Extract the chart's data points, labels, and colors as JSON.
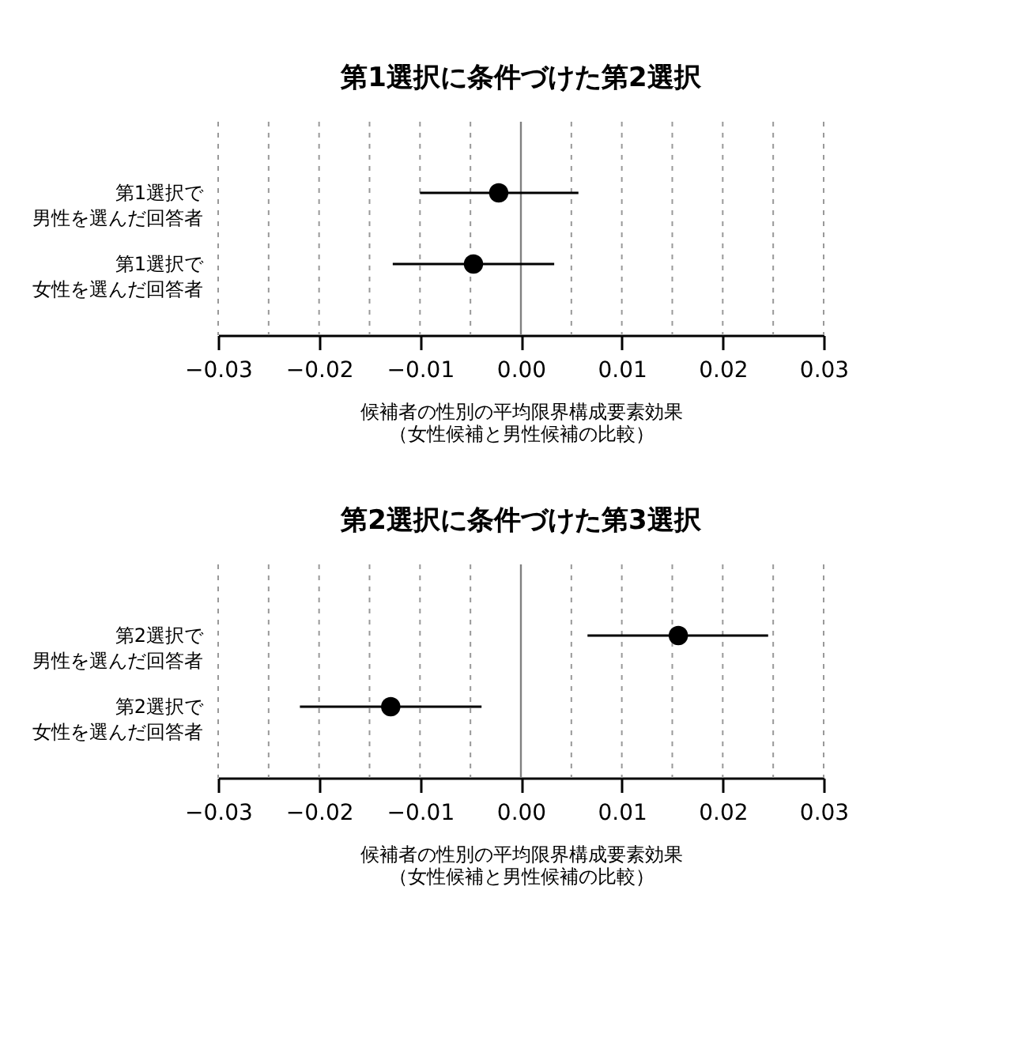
{
  "chart_data": [
    {
      "type": "scatter",
      "title": "第1選択に条件づけた第2選択",
      "xlabel": "候補者の性別の平均限界構成要素効果（女性候補と男性候補の比較）",
      "orientation": "horizontal",
      "categories": [
        "第1選択で男性を選んだ回答者",
        "第1選択で女性を選んだ回答者"
      ],
      "series": [
        {
          "color": "#000000",
          "values": [
            -0.0022,
            -0.0047
          ],
          "errors": [
            [
              -0.01,
              0.0057
            ],
            [
              -0.0127,
              0.0033
            ]
          ]
        }
      ],
      "xlim": [
        -0.03,
        0.03
      ],
      "xticks": [
        {
          "value": -0.03,
          "label": "−0.03"
        },
        {
          "value": -0.025,
          "label": null
        },
        {
          "value": -0.02,
          "label": "−0.02"
        },
        {
          "value": -0.015,
          "label": null
        },
        {
          "value": -0.01,
          "label": "−0.01"
        },
        {
          "value": -0.005,
          "label": null
        },
        {
          "value": 0,
          "label": "0.00"
        },
        {
          "value": 0.005,
          "label": null
        },
        {
          "value": 0.01,
          "label": "0.01"
        },
        {
          "value": 0.015,
          "label": null
        },
        {
          "value": 0.02,
          "label": "0.02"
        },
        {
          "value": 0.025,
          "label": null
        },
        {
          "value": 0.03,
          "label": "0.03"
        }
      ],
      "grid": "x",
      "marker": "circle",
      "ref_lines": [
        {
          "axis": "x",
          "value": 0,
          "color": "#808080"
        }
      ]
    },
    {
      "type": "scatter",
      "title": "第2選択に条件づけた第3選択",
      "xlabel": "候補者の性別の平均限界構成要素効果（女性候補と男性候補の比較）",
      "orientation": "horizontal",
      "categories": [
        "第2選択で男性を選んだ回答者",
        "第2選択で女性を選んだ回答者"
      ],
      "series": [
        {
          "color": "#000000",
          "values": [
            0.0156,
            -0.0129
          ],
          "errors": [
            [
              0.0066,
              0.0245
            ],
            [
              -0.0219,
              -0.0039
            ]
          ]
        }
      ],
      "xlim": [
        -0.03,
        0.03
      ],
      "xticks": [
        {
          "value": -0.03,
          "label": "−0.03"
        },
        {
          "value": -0.025,
          "label": null
        },
        {
          "value": -0.02,
          "label": "−0.02"
        },
        {
          "value": -0.015,
          "label": null
        },
        {
          "value": -0.01,
          "label": "−0.01"
        },
        {
          "value": -0.005,
          "label": null
        },
        {
          "value": 0,
          "label": "0.00"
        },
        {
          "value": 0.005,
          "label": null
        },
        {
          "value": 0.01,
          "label": "0.01"
        },
        {
          "value": 0.015,
          "label": null
        },
        {
          "value": 0.02,
          "label": "0.02"
        },
        {
          "value": 0.025,
          "label": null
        },
        {
          "value": 0.03,
          "label": "0.03"
        }
      ],
      "grid": "x",
      "marker": "circle",
      "ref_lines": [
        {
          "axis": "x",
          "value": 0,
          "color": "#808080"
        }
      ]
    }
  ]
}
